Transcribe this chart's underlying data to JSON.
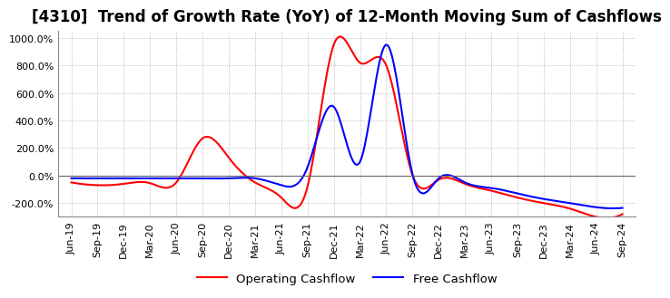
{
  "title": "[4310]  Trend of Growth Rate (YoY) of 12-Month Moving Sum of Cashflows",
  "title_fontsize": 12,
  "ylim": [
    -300,
    1050
  ],
  "yticks": [
    -200,
    0,
    200,
    400,
    600,
    800,
    1000
  ],
  "grid_color": "#aaaaaa",
  "background_color": "#ffffff",
  "legend_labels": [
    "Operating Cashflow",
    "Free Cashflow"
  ],
  "legend_colors": [
    "#ff0000",
    "#0000ff"
  ],
  "x_labels": [
    "Jun-19",
    "Sep-19",
    "Dec-19",
    "Mar-20",
    "Jun-20",
    "Sep-20",
    "Dec-20",
    "Mar-21",
    "Jun-21",
    "Sep-21",
    "Dec-21",
    "Mar-22",
    "Jun-22",
    "Sep-22",
    "Dec-22",
    "Mar-23",
    "Jun-23",
    "Sep-23",
    "Dec-23",
    "Mar-24",
    "Jun-24",
    "Sep-24"
  ],
  "operating_cashflow": [
    -50,
    -70,
    -60,
    -55,
    -50,
    270,
    130,
    -50,
    -160,
    -80,
    950,
    820,
    800,
    5,
    -30,
    -60,
    -110,
    -160,
    -200,
    -240,
    -300,
    -280
  ],
  "free_cashflow": [
    -20,
    -20,
    -20,
    -20,
    -20,
    -20,
    -20,
    -20,
    -70,
    60,
    500,
    100,
    950,
    10,
    -20,
    -50,
    -90,
    -130,
    -170,
    -200,
    -230,
    -235
  ]
}
